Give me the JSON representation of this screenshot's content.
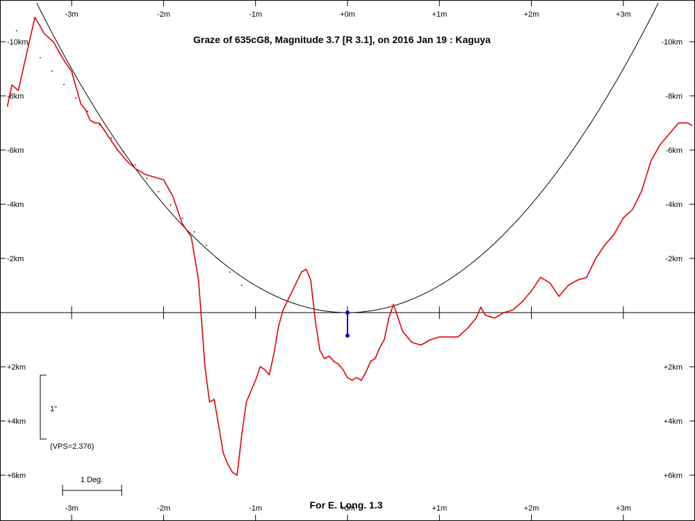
{
  "chart_data": {
    "type": "line",
    "title": "Graze of  635cG8,  Magnitude 3.7 [R 3.1],  on 2016 Jan 19  :  Kaguya",
    "footer": "For E. Long. 1.3",
    "x_unit": "minutes",
    "y_unit": "km",
    "x_ticks": [
      -3,
      -2,
      -1,
      0,
      1,
      2,
      3
    ],
    "x_tick_labels": [
      "-3m",
      "-2m",
      "-1m",
      "+0m",
      "+1m",
      "+2m",
      "+3m"
    ],
    "y_ticks": [
      -10,
      -8,
      -6,
      -4,
      -2,
      2,
      4,
      6
    ],
    "y_tick_labels": [
      "-10km",
      "-8km",
      "-6km",
      "-4km",
      "-2km",
      "+2km",
      "+4km",
      "+6km"
    ],
    "xlim": [
      -3.7,
      3.75
    ],
    "ylim": [
      -11.1,
      7.4
    ],
    "scale_bar_time_label": "1\"",
    "scale_bar_deg_label": "1 Deg.",
    "vps_label": "(VPS=2.376)",
    "colors": {
      "profile": "#e00000",
      "limb_curve": "#000000",
      "star_marker": "#0000e0",
      "axis": "#000000"
    },
    "series": [
      {
        "x": [
          -3.7,
          -3.65,
          -3.58,
          -3.5,
          -3.4,
          -3.33,
          -3.3,
          -3.2,
          -3.1,
          -3.0,
          -2.9,
          -2.85,
          -2.8,
          -2.75,
          -2.7,
          -2.6,
          -2.5,
          -2.4,
          -2.3,
          -2.2,
          -2.1,
          -2.0,
          -1.9,
          -1.8,
          -1.7,
          -1.62,
          -1.55,
          -1.5,
          -1.45,
          -1.4,
          -1.35,
          -1.3,
          -1.25,
          -1.2,
          -1.15,
          -1.1,
          -1.0,
          -0.95,
          -0.9,
          -0.85,
          -0.8,
          -0.75,
          -0.7,
          -0.6,
          -0.5,
          -0.45,
          -0.4,
          -0.35,
          -0.3,
          -0.25,
          -0.2,
          -0.15,
          -0.1,
          -0.05,
          0.0,
          0.05,
          0.1,
          0.15,
          0.2,
          0.25,
          0.3,
          0.35,
          0.4,
          0.45,
          0.5,
          0.55,
          0.6,
          0.7,
          0.8,
          0.9,
          1.0,
          1.1,
          1.2,
          1.3,
          1.4,
          1.45,
          1.5,
          1.6,
          1.7,
          1.8,
          1.9,
          2.0,
          2.1,
          2.2,
          2.3,
          2.4,
          2.5,
          2.6,
          2.7,
          2.8,
          2.9,
          3.0,
          3.1,
          3.2,
          3.3,
          3.4,
          3.5,
          3.6,
          3.7,
          3.75
        ],
        "y": [
          -7.6,
          -8.4,
          -8.2,
          -9.4,
          -10.9,
          -10.5,
          -10.3,
          -10.0,
          -9.4,
          -8.9,
          -7.7,
          -7.5,
          -7.1,
          -7.0,
          -7.0,
          -6.5,
          -6.0,
          -5.6,
          -5.3,
          -5.1,
          -5.0,
          -4.9,
          -4.3,
          -3.3,
          -2.8,
          -1.2,
          2.0,
          3.3,
          3.2,
          4.2,
          5.2,
          5.6,
          5.9,
          6.0,
          4.5,
          3.3,
          2.5,
          2.0,
          2.1,
          2.3,
          1.5,
          0.5,
          -0.1,
          -0.8,
          -1.5,
          -1.6,
          -1.2,
          0.3,
          1.4,
          1.7,
          1.6,
          1.8,
          1.9,
          2.1,
          2.4,
          2.5,
          2.4,
          2.5,
          2.2,
          1.8,
          1.7,
          1.3,
          1.0,
          0.2,
          -0.3,
          0.2,
          0.7,
          1.1,
          1.2,
          1.0,
          0.9,
          0.9,
          0.9,
          0.6,
          0.2,
          -0.2,
          0.1,
          0.2,
          0.0,
          -0.1,
          -0.4,
          -0.8,
          -1.3,
          -1.1,
          -0.6,
          -1.0,
          -1.2,
          -1.3,
          -2.0,
          -2.5,
          -2.9,
          -3.5,
          -3.8,
          -4.5,
          -5.6,
          -6.2,
          -6.6,
          -7.0,
          -7.0,
          -6.9
        ]
      }
    ],
    "limb_curve": {
      "k": 1.0
    },
    "predicted_limb_dots": {
      "x_from": -3.6,
      "x_to": -1.15,
      "y_from": -10.4,
      "y_to": -1.0
    },
    "star_marker": {
      "x": 0.0,
      "y_from": 0.0,
      "y_to": 0.85
    }
  }
}
